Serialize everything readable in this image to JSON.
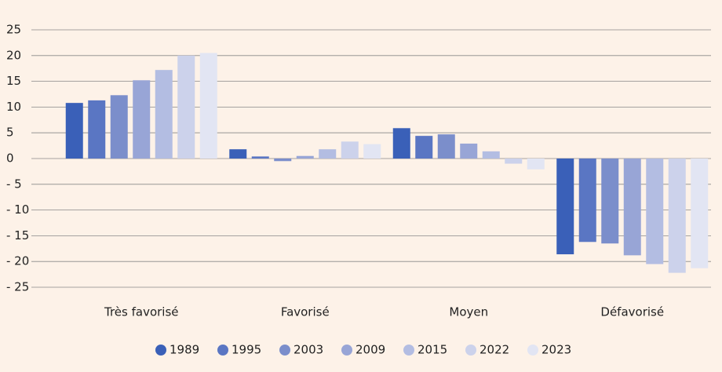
{
  "chart_data": {
    "type": "bar",
    "categories": [
      "Très favorisé",
      "Favorisé",
      "Moyen",
      "Défavorisé"
    ],
    "series": [
      {
        "name": "1989",
        "color": "#3a60b8",
        "values": [
          10.8,
          1.8,
          5.9,
          -18.6
        ]
      },
      {
        "name": "1995",
        "color": "#5a76c3",
        "values": [
          11.3,
          0.4,
          4.4,
          -16.2
        ]
      },
      {
        "name": "2003",
        "color": "#7b8ecb",
        "values": [
          12.3,
          -0.5,
          4.7,
          -16.5
        ]
      },
      {
        "name": "2009",
        "color": "#98a5d6",
        "values": [
          15.2,
          0.5,
          2.9,
          -18.8
        ]
      },
      {
        "name": "2015",
        "color": "#b3bde2",
        "values": [
          17.2,
          1.8,
          1.4,
          -20.5
        ]
      },
      {
        "name": "2022",
        "color": "#ccd2eb",
        "values": [
          20,
          3.3,
          -1.0,
          -22.2
        ]
      },
      {
        "name": "2023",
        "color": "#e2e5f3",
        "values": [
          20.5,
          2.8,
          -2.1,
          -21.3
        ]
      }
    ],
    "ylim": [
      -25,
      25
    ],
    "yticks": [
      25,
      20,
      15,
      10,
      5,
      0,
      {
        "value": -5,
        "label": "- 5"
      },
      {
        "value": -10,
        "label": "- 10"
      },
      {
        "value": -15,
        "label": "- 15"
      },
      {
        "value": -20,
        "label": "- 20"
      },
      {
        "value": -25,
        "label": "- 25"
      }
    ],
    "grid": true,
    "legend": "bottom"
  }
}
